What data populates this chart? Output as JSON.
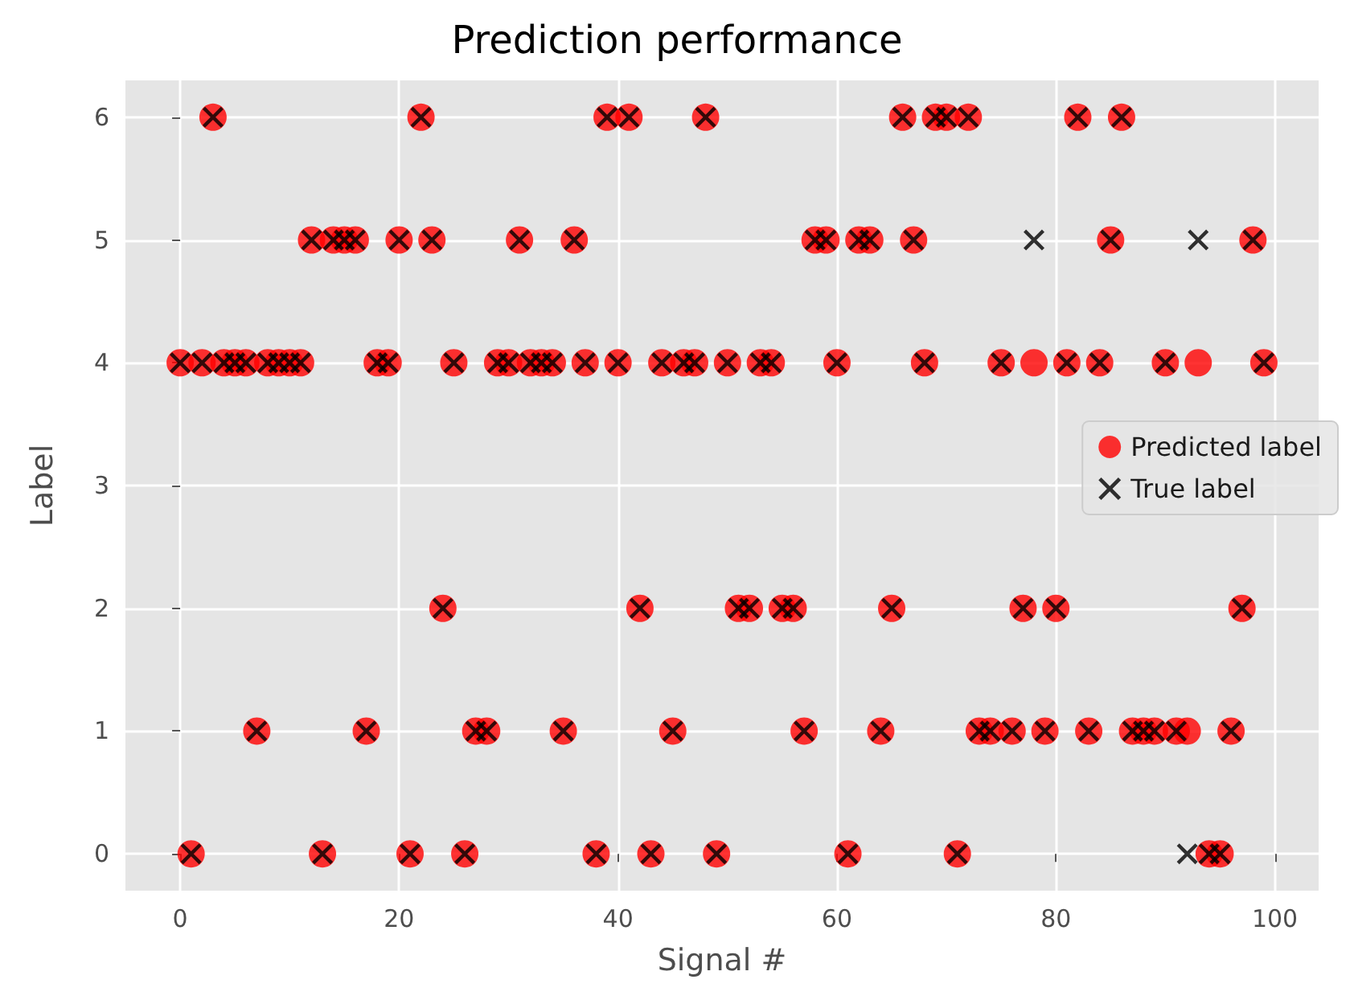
{
  "chart_data": {
    "type": "scatter",
    "title": "Prediction performance",
    "xlabel": "Signal #",
    "ylabel": "Label",
    "x": [
      0,
      1,
      2,
      3,
      4,
      5,
      6,
      7,
      8,
      9,
      10,
      11,
      12,
      13,
      14,
      15,
      16,
      17,
      18,
      19,
      20,
      21,
      22,
      23,
      24,
      25,
      26,
      27,
      28,
      29,
      30,
      31,
      32,
      33,
      34,
      35,
      36,
      37,
      38,
      39,
      40,
      41,
      42,
      43,
      44,
      45,
      46,
      47,
      48,
      49,
      50,
      51,
      52,
      53,
      54,
      55,
      56,
      57,
      58,
      59,
      60,
      61,
      62,
      63,
      64,
      65,
      66,
      67,
      68,
      69,
      70,
      71,
      72,
      73,
      74,
      75,
      76,
      77,
      78,
      79,
      80,
      81,
      82,
      83,
      84,
      85,
      86,
      87,
      88,
      89,
      90,
      91,
      92,
      93,
      94,
      95,
      96,
      97,
      98,
      99
    ],
    "series": [
      {
        "name": "Predicted label",
        "color": "#ff0000",
        "marker": "circle",
        "values": [
          4,
          0,
          4,
          6,
          4,
          4,
          4,
          1,
          4,
          4,
          4,
          4,
          5,
          0,
          5,
          5,
          5,
          1,
          4,
          4,
          5,
          0,
          6,
          5,
          2,
          4,
          0,
          1,
          1,
          4,
          4,
          5,
          4,
          4,
          4,
          1,
          5,
          4,
          0,
          6,
          4,
          6,
          2,
          0,
          4,
          1,
          4,
          4,
          6,
          0,
          4,
          2,
          2,
          4,
          4,
          2,
          2,
          1,
          5,
          5,
          4,
          0,
          5,
          5,
          1,
          2,
          6,
          5,
          4,
          6,
          6,
          0,
          6,
          1,
          1,
          4,
          1,
          2,
          4,
          1,
          2,
          4,
          6,
          1,
          4,
          5,
          6,
          1,
          1,
          1,
          4,
          1,
          1,
          4,
          0,
          0,
          1,
          2,
          5,
          4
        ]
      },
      {
        "name": "True label",
        "color": "#000000",
        "marker": "cross",
        "values": [
          4,
          0,
          4,
          6,
          4,
          4,
          4,
          1,
          4,
          4,
          4,
          4,
          5,
          0,
          5,
          5,
          5,
          1,
          4,
          4,
          5,
          0,
          6,
          5,
          2,
          4,
          0,
          1,
          1,
          4,
          4,
          5,
          4,
          4,
          4,
          1,
          5,
          4,
          0,
          6,
          4,
          6,
          2,
          0,
          4,
          1,
          4,
          4,
          6,
          0,
          4,
          2,
          2,
          4,
          4,
          2,
          2,
          1,
          5,
          5,
          4,
          0,
          5,
          5,
          1,
          2,
          6,
          5,
          4,
          6,
          6,
          0,
          6,
          1,
          1,
          4,
          1,
          2,
          5,
          1,
          2,
          4,
          6,
          1,
          4,
          5,
          6,
          1,
          1,
          1,
          4,
          1,
          0,
          5,
          0,
          0,
          1,
          2,
          5,
          4
        ]
      }
    ],
    "xlim": [
      -5,
      104
    ],
    "xticks": [
      0,
      20,
      40,
      60,
      80,
      100
    ],
    "ylim": [
      -0.3,
      6.3
    ],
    "yticks": [
      0,
      1,
      2,
      3,
      4,
      5,
      6
    ],
    "grid": true,
    "legend": "right"
  }
}
